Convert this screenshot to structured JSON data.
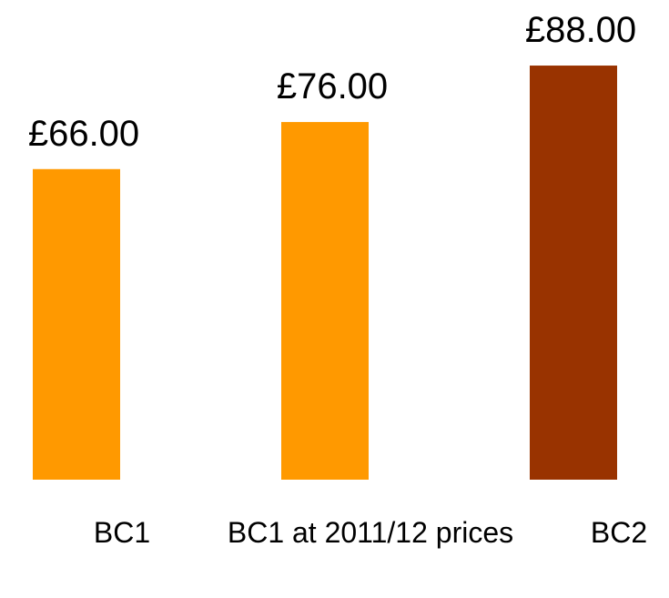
{
  "chart_data": {
    "type": "bar",
    "categories": [
      "BC1",
      "BC1 at 2011/12 prices",
      "BC2"
    ],
    "values": [
      66,
      76,
      88
    ],
    "value_labels": [
      "£66.00",
      "£76.00",
      "£88.00"
    ],
    "colors": [
      "#ff9900",
      "#ff9900",
      "#993300"
    ]
  }
}
